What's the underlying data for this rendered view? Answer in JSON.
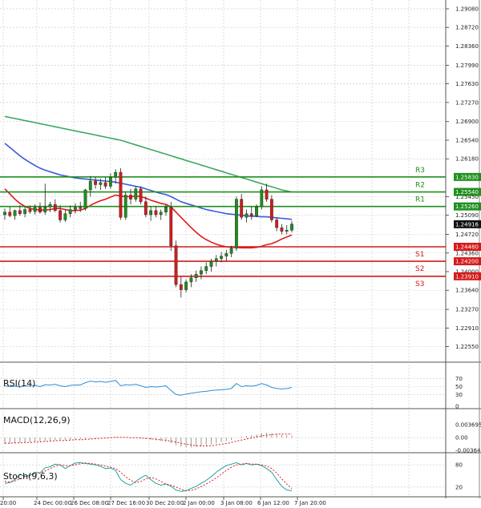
{
  "chart_data": {
    "type": "candlestick",
    "instrument_levels": {
      "resistance": [
        {
          "name": "R3",
          "price": 1.2583,
          "label": "1.25830"
        },
        {
          "name": "R2",
          "price": 1.2554,
          "label": "1.25540"
        },
        {
          "name": "R1",
          "price": 1.2526,
          "label": "1.25260"
        }
      ],
      "support": [
        {
          "name": "S1",
          "price": 1.2448,
          "label": "1.24480"
        },
        {
          "name": "S2",
          "price": 1.242,
          "label": "1.24200"
        },
        {
          "name": "S3",
          "price": 1.2391,
          "label": "1.23910"
        }
      ],
      "current_price": {
        "price": 1.24916,
        "label": "1.24916"
      }
    },
    "price_axis": {
      "range": [
        1.2225,
        1.2925
      ],
      "ticks": [
        "1.29080",
        "1.28720",
        "1.28360",
        "1.27990",
        "1.27630",
        "1.27270",
        "1.26900",
        "1.26540",
        "1.26180",
        "1.25450",
        "1.25090",
        "1.24720",
        "1.24360",
        "1.24000",
        "1.23640",
        "1.23270",
        "1.22910",
        "1.22550"
      ]
    },
    "time_axis": {
      "ticks": [
        "20:00",
        "24 Dec 00:00",
        "26 Dec 08:00",
        "27 Dec 16:00",
        "30 Dec 20:00",
        "2 Jan 00:00",
        "3 Jan 08:00",
        "6 Jan 12:00",
        "7 Jan 20:00"
      ]
    },
    "candles": [
      [
        1.251,
        1.2522,
        1.25,
        1.2515
      ],
      [
        1.2515,
        1.2525,
        1.2505,
        1.2508
      ],
      [
        1.2508,
        1.252,
        1.25,
        1.2518
      ],
      [
        1.2518,
        1.2528,
        1.2508,
        1.2512
      ],
      [
        1.2512,
        1.2526,
        1.2505,
        1.252
      ],
      [
        1.252,
        1.2528,
        1.2512,
        1.2516
      ],
      [
        1.2516,
        1.253,
        1.251,
        1.2524
      ],
      [
        1.2524,
        1.2534,
        1.2512,
        1.2515
      ],
      [
        1.2515,
        1.257,
        1.251,
        1.2525
      ],
      [
        1.2525,
        1.2535,
        1.2515,
        1.253
      ],
      [
        1.253,
        1.254,
        1.2515,
        1.2518
      ],
      [
        1.2518,
        1.2528,
        1.2495,
        1.25
      ],
      [
        1.25,
        1.252,
        1.2496,
        1.2512
      ],
      [
        1.2512,
        1.2528,
        1.2505,
        1.252
      ],
      [
        1.252,
        1.2532,
        1.2512,
        1.2524
      ],
      [
        1.2524,
        1.2535,
        1.2515,
        1.2522
      ],
      [
        1.2522,
        1.256,
        1.2518,
        1.2558
      ],
      [
        1.2558,
        1.2585,
        1.2545,
        1.2575
      ],
      [
        1.2575,
        1.2583,
        1.256,
        1.2568
      ],
      [
        1.2568,
        1.258,
        1.2558,
        1.2572
      ],
      [
        1.2572,
        1.2582,
        1.256,
        1.2565
      ],
      [
        1.2565,
        1.259,
        1.256,
        1.2582
      ],
      [
        1.2582,
        1.2598,
        1.257,
        1.2592
      ],
      [
        1.2592,
        1.26,
        1.25,
        1.2505
      ],
      [
        1.2505,
        1.2555,
        1.25,
        1.2548
      ],
      [
        1.2548,
        1.256,
        1.253,
        1.254
      ],
      [
        1.254,
        1.2565,
        1.2535,
        1.256
      ],
      [
        1.256,
        1.2565,
        1.253,
        1.2535
      ],
      [
        1.2535,
        1.2545,
        1.2505,
        1.251
      ],
      [
        1.251,
        1.2525,
        1.2498,
        1.2518
      ],
      [
        1.2518,
        1.2526,
        1.2505,
        1.251
      ],
      [
        1.251,
        1.252,
        1.25,
        1.2515
      ],
      [
        1.2515,
        1.253,
        1.2508,
        1.2525
      ],
      [
        1.2525,
        1.2535,
        1.244,
        1.245
      ],
      [
        1.245,
        1.246,
        1.237,
        1.2375
      ],
      [
        1.2375,
        1.239,
        1.235,
        1.2365
      ],
      [
        1.2365,
        1.2385,
        1.236,
        1.238
      ],
      [
        1.238,
        1.2395,
        1.237,
        1.2388
      ],
      [
        1.2388,
        1.2402,
        1.238,
        1.2395
      ],
      [
        1.2395,
        1.241,
        1.2385,
        1.2402
      ],
      [
        1.2402,
        1.2418,
        1.2395,
        1.241
      ],
      [
        1.241,
        1.2425,
        1.24,
        1.242
      ],
      [
        1.242,
        1.2432,
        1.241,
        1.2425
      ],
      [
        1.2425,
        1.2438,
        1.2418,
        1.243
      ],
      [
        1.243,
        1.2442,
        1.242,
        1.2435
      ],
      [
        1.2435,
        1.245,
        1.2428,
        1.2445
      ],
      [
        1.2445,
        1.2545,
        1.244,
        1.254
      ],
      [
        1.254,
        1.255,
        1.25,
        1.2505
      ],
      [
        1.2505,
        1.252,
        1.2495,
        1.2512
      ],
      [
        1.2512,
        1.2526,
        1.25,
        1.2508
      ],
      [
        1.2508,
        1.253,
        1.2505,
        1.2525
      ],
      [
        1.2525,
        1.2565,
        1.252,
        1.2558
      ],
      [
        1.2558,
        1.257,
        1.2535,
        1.254
      ],
      [
        1.254,
        1.2548,
        1.2495,
        1.25
      ],
      [
        1.25,
        1.2505,
        1.2478,
        1.2485
      ],
      [
        1.2485,
        1.2492,
        1.2472,
        1.2478
      ],
      [
        1.2478,
        1.249,
        1.2472,
        1.248
      ],
      [
        1.248,
        1.2498,
        1.2476,
        1.2492
      ]
    ],
    "moving_averages": [
      {
        "color": "#e01b1b",
        "values": [
          1.256,
          1.255,
          1.254,
          1.2532,
          1.2526,
          1.2522,
          1.252,
          1.2519,
          1.2519,
          1.252,
          1.2522,
          1.2522,
          1.252,
          1.2518,
          1.2518,
          1.2519,
          1.2522,
          1.2528,
          1.2533,
          1.2537,
          1.254,
          1.2544,
          1.2548,
          1.2546,
          1.2545,
          1.2545,
          1.2546,
          1.2545,
          1.2542,
          1.2538,
          1.2535,
          1.2532,
          1.253,
          1.2525,
          1.2515,
          1.2505,
          1.2495,
          1.2485,
          1.2476,
          1.2468,
          1.2462,
          1.2457,
          1.2453,
          1.245,
          1.2448,
          1.2447,
          1.2447,
          1.2446,
          1.2446,
          1.2446,
          1.2447,
          1.2449,
          1.2452,
          1.2454,
          1.2458,
          1.2463,
          1.2467,
          1.2471
        ]
      },
      {
        "color": "#3a5bd9",
        "values": [
          1.2648,
          1.264,
          1.2632,
          1.2624,
          1.2617,
          1.2611,
          1.2605,
          1.26,
          1.2596,
          1.2593,
          1.259,
          1.2587,
          1.2585,
          1.2583,
          1.2581,
          1.258,
          1.2579,
          1.2578,
          1.2577,
          1.2576,
          1.2575,
          1.2574,
          1.2573,
          1.2571,
          1.2569,
          1.2567,
          1.2565,
          1.2563,
          1.256,
          1.2557,
          1.2554,
          1.2551,
          1.2549,
          1.2545,
          1.254,
          1.2535,
          1.2532,
          1.2529,
          1.2526,
          1.2523,
          1.252,
          1.2518,
          1.2516,
          1.2514,
          1.2512,
          1.2511,
          1.251,
          1.2509,
          1.2508,
          1.2507,
          1.2507,
          1.2506,
          1.2506,
          1.2505,
          1.2504,
          1.2503,
          1.2502,
          1.2501
        ]
      },
      {
        "color": "#3aa860",
        "values": [
          1.27,
          1.2698,
          1.2696,
          1.2694,
          1.2692,
          1.269,
          1.2688,
          1.2686,
          1.2684,
          1.2682,
          1.268,
          1.2678,
          1.2676,
          1.2674,
          1.2672,
          1.267,
          1.2668,
          1.2666,
          1.2664,
          1.2662,
          1.266,
          1.2658,
          1.2656,
          1.2654,
          1.2651,
          1.2648,
          1.2645,
          1.2642,
          1.2639,
          1.2636,
          1.2633,
          1.263,
          1.2627,
          1.2624,
          1.2621,
          1.2618,
          1.2615,
          1.2612,
          1.2609,
          1.2606,
          1.2603,
          1.26,
          1.2597,
          1.2594,
          1.2591,
          1.2588,
          1.2585,
          1.2582,
          1.2579,
          1.2576,
          1.2573,
          1.257,
          1.2567,
          1.2564,
          1.2561,
          1.2558,
          1.2556,
          1.2554
        ]
      }
    ],
    "indicators": {
      "rsi": {
        "label": "RSI(14)",
        "range": [
          0,
          100
        ],
        "ticks": [
          "70",
          "50",
          "30",
          "0"
        ],
        "values": [
          52,
          50,
          51,
          49,
          52,
          51,
          53,
          50,
          55,
          54,
          56,
          52,
          50,
          53,
          54,
          54,
          60,
          64,
          62,
          63,
          61,
          63,
          66,
          52,
          55,
          54,
          56,
          52,
          48,
          50,
          49,
          50,
          52,
          40,
          30,
          28,
          31,
          33,
          35,
          37,
          38,
          40,
          41,
          42,
          43,
          45,
          58,
          50,
          52,
          51,
          53,
          58,
          54,
          48,
          45,
          44,
          45,
          48
        ]
      },
      "macd": {
        "label": "MACD(12,26,9)",
        "range": [
          -0.00364,
          0.00695
        ],
        "ticks": [
          "0.003695",
          "0.00",
          "-0.00364"
        ],
        "hist": [
          -0.0018,
          -0.0017,
          -0.0016,
          -0.0015,
          -0.0014,
          -0.0013,
          -0.0012,
          -0.0011,
          -0.001,
          -0.0009,
          -0.0008,
          -0.0007,
          -0.0007,
          -0.0006,
          -0.0006,
          -0.0005,
          -0.0004,
          -0.0003,
          -0.0002,
          -0.0001,
          0.0,
          0.0001,
          0.0002,
          0.0001,
          0.0,
          0.0,
          -0.0001,
          -0.0002,
          -0.0004,
          -0.0006,
          -0.0008,
          -0.001,
          -0.0012,
          -0.0016,
          -0.0022,
          -0.0026,
          -0.0028,
          -0.0028,
          -0.0027,
          -0.0025,
          -0.0022,
          -0.0019,
          -0.0016,
          -0.0013,
          -0.001,
          -0.0007,
          0.0,
          0.0003,
          0.0005,
          0.0007,
          0.0009,
          0.0013,
          0.0014,
          0.0012,
          0.001,
          0.0008,
          0.0007,
          0.0006
        ],
        "signal": [
          -0.0016,
          -0.0016,
          -0.0015,
          -0.0015,
          -0.0014,
          -0.0014,
          -0.0013,
          -0.0012,
          -0.0011,
          -0.001,
          -0.0009,
          -0.0008,
          -0.0008,
          -0.0007,
          -0.0006,
          -0.0006,
          -0.0005,
          -0.0004,
          -0.0003,
          -0.0002,
          -0.0001,
          0.0,
          0.0001,
          0.0001,
          0.0001,
          0.0,
          0.0,
          -0.0001,
          -0.0002,
          -0.0003,
          -0.0005,
          -0.0006,
          -0.0008,
          -0.001,
          -0.0013,
          -0.0016,
          -0.0019,
          -0.0021,
          -0.0023,
          -0.0024,
          -0.0024,
          -0.0023,
          -0.0021,
          -0.0019,
          -0.0017,
          -0.0014,
          -0.001,
          -0.0007,
          -0.0004,
          -0.0001,
          0.0002,
          0.0005,
          0.0007,
          0.0009,
          0.001,
          0.001,
          0.001,
          0.001
        ]
      },
      "stoch": {
        "label": "Stoch(9,6,3)",
        "range": [
          0,
          100
        ],
        "ticks": [
          "80",
          "20"
        ],
        "k": [
          30,
          32,
          40,
          55,
          48,
          52,
          60,
          58,
          72,
          75,
          82,
          80,
          70,
          78,
          85,
          86,
          84,
          82,
          80,
          76,
          70,
          72,
          65,
          40,
          30,
          25,
          35,
          45,
          52,
          40,
          30,
          25,
          28,
          22,
          12,
          8,
          10,
          16,
          22,
          30,
          38,
          48,
          60,
          70,
          78,
          82,
          86,
          80,
          84,
          80,
          82,
          78,
          70,
          60,
          40,
          22,
          12,
          10
        ],
        "d": [
          35,
          34,
          36,
          42,
          48,
          52,
          55,
          58,
          63,
          70,
          76,
          80,
          78,
          78,
          80,
          83,
          85,
          84,
          82,
          80,
          77,
          74,
          70,
          60,
          48,
          38,
          32,
          35,
          42,
          46,
          42,
          35,
          28,
          25,
          20,
          14,
          10,
          11,
          15,
          21,
          28,
          36,
          45,
          55,
          65,
          74,
          80,
          82,
          84,
          82,
          82,
          80,
          77,
          70,
          58,
          42,
          28,
          16
        ]
      }
    }
  }
}
